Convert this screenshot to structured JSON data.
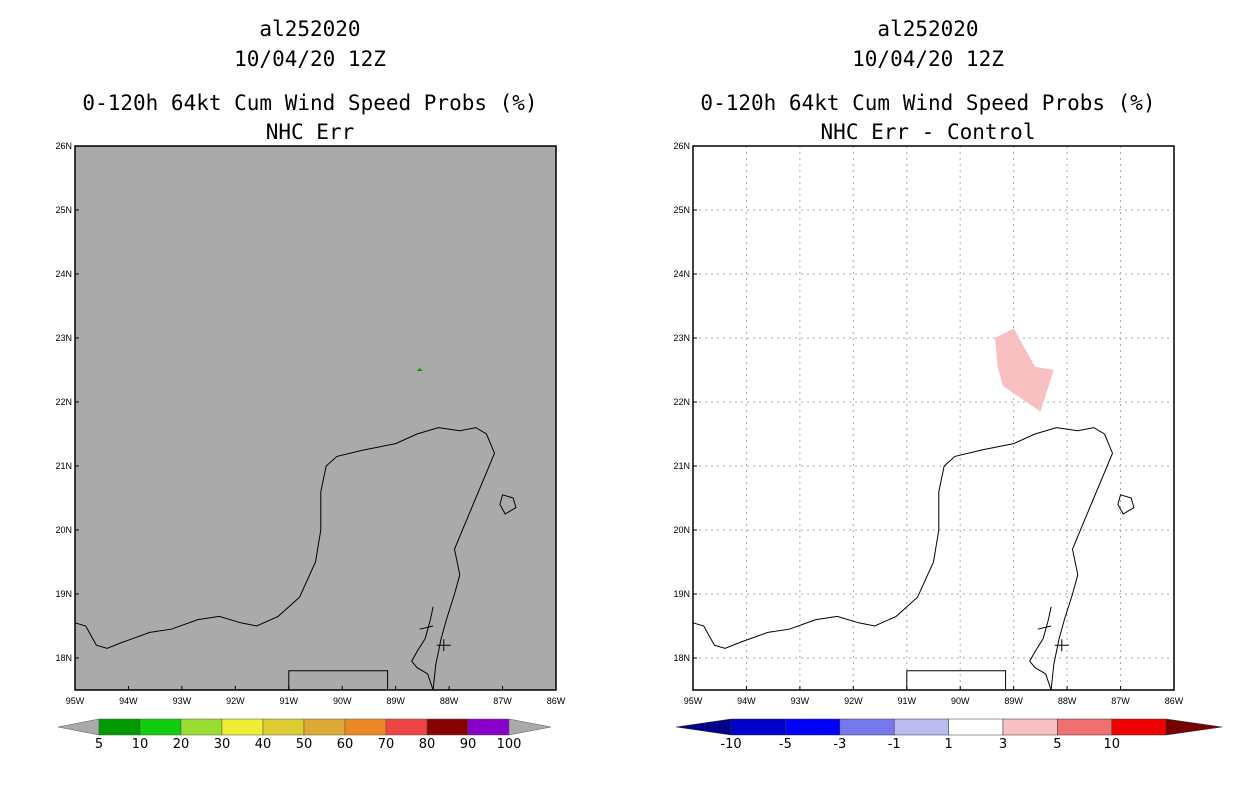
{
  "panels": [
    {
      "storm_id": "al252020",
      "datetime": "10/04/20 12Z",
      "title": "0-120h 64kt Cum Wind Speed Probs (%)",
      "subtitle": "NHC Err",
      "lat_labels": [
        "26N",
        "25N",
        "24N",
        "23N",
        "22N",
        "21N",
        "20N",
        "19N",
        "18N"
      ],
      "lon_labels": [
        "95W",
        "94W",
        "93W",
        "92W",
        "91W",
        "90W",
        "89W",
        "88W",
        "87W",
        "86W"
      ],
      "colorbar": {
        "labels": [
          "5",
          "10",
          "20",
          "30",
          "40",
          "50",
          "60",
          "70",
          "80",
          "90",
          "100"
        ],
        "colors": [
          "#009900",
          "#11cc11",
          "#99dd33",
          "#eeee33",
          "#ddcc33",
          "#ddaa33",
          "#ee8822",
          "#ee4444",
          "#880000",
          "#8800cc"
        ],
        "end_color": "#aaaaaa"
      }
    },
    {
      "storm_id": "al252020",
      "datetime": "10/04/20 12Z",
      "title": "0-120h 64kt Cum Wind Speed Probs (%)",
      "subtitle": "NHC Err - Control",
      "lat_labels": [
        "26N",
        "25N",
        "24N",
        "23N",
        "22N",
        "21N",
        "20N",
        "19N",
        "18N"
      ],
      "lon_labels": [
        "95W",
        "94W",
        "93W",
        "92W",
        "91W",
        "90W",
        "89W",
        "88W",
        "87W",
        "86W"
      ],
      "colorbar": {
        "labels": [
          "-10",
          "-5",
          "-3",
          "-1",
          "1",
          "3",
          "5",
          "10"
        ],
        "colors": [
          "#0000cc",
          "#0000ff",
          "#7777ee",
          "#bbbbee",
          "#ffffff",
          "#f8c0c0",
          "#f07070",
          "#ee0000"
        ],
        "low_color": "#000088",
        "high_color": "#770000"
      }
    }
  ],
  "map": {
    "domain": {
      "lon_min": -95,
      "lon_max": -86,
      "lat_min": 17.5,
      "lat_max": 26
    },
    "coastline_yucatan": [
      [
        -95,
        18.55
      ],
      [
        -94.8,
        18.5
      ],
      [
        -94.6,
        18.2
      ],
      [
        -94.4,
        18.15
      ],
      [
        -94.1,
        18.25
      ],
      [
        -93.6,
        18.4
      ],
      [
        -93.2,
        18.45
      ],
      [
        -92.7,
        18.6
      ],
      [
        -92.3,
        18.65
      ],
      [
        -91.9,
        18.55
      ],
      [
        -91.6,
        18.5
      ],
      [
        -91.2,
        18.65
      ],
      [
        -90.8,
        18.95
      ],
      [
        -90.5,
        19.5
      ],
      [
        -90.4,
        20.0
      ],
      [
        -90.4,
        20.6
      ],
      [
        -90.3,
        21.0
      ],
      [
        -90.1,
        21.15
      ],
      [
        -89.6,
        21.25
      ],
      [
        -89.0,
        21.35
      ],
      [
        -88.6,
        21.5
      ],
      [
        -88.2,
        21.6
      ],
      [
        -87.8,
        21.55
      ],
      [
        -87.5,
        21.6
      ],
      [
        -87.3,
        21.5
      ],
      [
        -87.15,
        21.2
      ],
      [
        -87.3,
        20.9
      ],
      [
        -87.5,
        20.5
      ],
      [
        -87.7,
        20.1
      ],
      [
        -87.9,
        19.7
      ],
      [
        -87.8,
        19.3
      ],
      [
        -87.9,
        19.0
      ],
      [
        -88.05,
        18.6
      ],
      [
        -88.15,
        18.3
      ],
      [
        -88.25,
        17.9
      ],
      [
        -88.3,
        17.5
      ]
    ],
    "coastline_bay": [
      [
        -88.3,
        17.5
      ],
      [
        -88.4,
        17.75
      ],
      [
        -88.6,
        17.85
      ],
      [
        -88.7,
        17.95
      ],
      [
        -88.6,
        18.1
      ],
      [
        -88.45,
        18.3
      ],
      [
        -88.35,
        18.6
      ],
      [
        -88.3,
        18.8
      ]
    ],
    "island_cozumel": [
      [
        -87.0,
        20.55
      ],
      [
        -86.8,
        20.5
      ],
      [
        -86.75,
        20.35
      ],
      [
        -86.95,
        20.25
      ],
      [
        -87.05,
        20.4
      ],
      [
        -87.0,
        20.55
      ]
    ],
    "border_guatemala": [
      [
        -91.0,
        17.5
      ],
      [
        -91.0,
        17.8
      ],
      [
        -89.15,
        17.8
      ],
      [
        -89.15,
        17.5
      ]
    ],
    "border_belize": [
      [
        -88.55,
        18.45
      ],
      [
        -88.3,
        18.5
      ]
    ],
    "features": {
      "panel1_green_speck": {
        "lon": -88.55,
        "lat": 22.5,
        "color": "#009900"
      },
      "panel2_pink_area": {
        "points": [
          [
            -89.35,
            23.0
          ],
          [
            -89.0,
            23.15
          ],
          [
            -88.6,
            22.55
          ],
          [
            -88.25,
            22.5
          ],
          [
            -88.5,
            21.85
          ],
          [
            -89.2,
            22.25
          ],
          [
            -89.3,
            22.55
          ]
        ],
        "color": "#f8c0c0"
      }
    }
  }
}
